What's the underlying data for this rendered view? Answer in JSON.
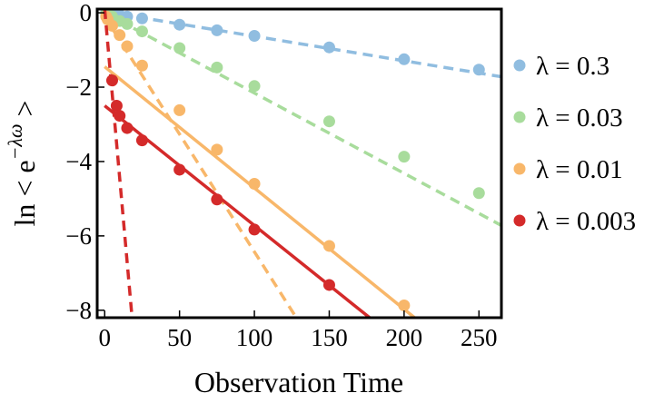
{
  "chart_data": {
    "type": "scatter",
    "title": "",
    "xlabel": "Observation Time",
    "ylabel": "ln < e",
    "ylabel_superscript": "−λω",
    "ylabel_suffix": " >",
    "xlim": [
      -5,
      265
    ],
    "ylim": [
      -8.2,
      0.1
    ],
    "x_ticks": [
      0,
      50,
      100,
      150,
      200,
      250
    ],
    "x_tick_labels": [
      "0",
      "50",
      "100",
      "150",
      "200",
      "250"
    ],
    "y_ticks": [
      0,
      -2,
      -4,
      -6,
      -8
    ],
    "y_tick_labels": [
      "0",
      "−2",
      "−4",
      "−6",
      "−8"
    ],
    "grid": false,
    "legend_position": "right",
    "series": [
      {
        "name": "λ = 0.3",
        "color": "#90bde0",
        "x": [
          1,
          2,
          5,
          10,
          15,
          25,
          50,
          75,
          100,
          150,
          200,
          250
        ],
        "y": [
          0,
          -0.01,
          -0.03,
          -0.06,
          -0.1,
          -0.15,
          -0.32,
          -0.47,
          -0.62,
          -0.93,
          -1.25,
          -1.53
        ],
        "fit_lines": [
          {
            "style": "dashed",
            "x": [
              0,
              265
            ],
            "y": [
              0.03,
              -1.72
            ]
          }
        ]
      },
      {
        "name": "λ = 0.03",
        "color": "#a8dc9c",
        "x": [
          1,
          2,
          5,
          10,
          15,
          25,
          50,
          75,
          100,
          150,
          200,
          250
        ],
        "y": [
          -0.03,
          -0.05,
          -0.1,
          -0.22,
          -0.3,
          -0.5,
          -0.95,
          -1.47,
          -1.97,
          -2.92,
          -3.87,
          -4.85
        ],
        "fit_lines": [
          {
            "style": "dashed",
            "x": [
              0,
              265
            ],
            "y": [
              0,
              -5.72
            ]
          }
        ]
      },
      {
        "name": "λ = 0.01",
        "color": "#f8b76a",
        "x": [
          1,
          2,
          5,
          10,
          15,
          25,
          50,
          75,
          100,
          150,
          200
        ],
        "y": [
          -0.1,
          -0.18,
          -0.35,
          -0.6,
          -0.9,
          -1.42,
          -2.62,
          -3.68,
          -4.6,
          -6.27,
          -7.87
        ],
        "fit_lines": [
          {
            "style": "dashed",
            "x": [
              0,
              128
            ],
            "y": [
              -0.1,
              -8.2
            ]
          },
          {
            "style": "solid",
            "x": [
              0,
              207
            ],
            "y": [
              -1.45,
              -8.2
            ]
          }
        ]
      },
      {
        "name": "λ = 0.003",
        "color": "#d42a2a",
        "x": [
          5,
          8,
          10,
          15,
          25,
          50,
          75,
          100,
          150
        ],
        "y": [
          -1.82,
          -2.5,
          -2.77,
          -3.1,
          -3.43,
          -4.22,
          -5.02,
          -5.83,
          -7.32
        ],
        "fit_lines": [
          {
            "style": "dashed",
            "x": [
              0,
              18.3
            ],
            "y": [
              0.1,
              -8.2
            ]
          },
          {
            "style": "solid",
            "x": [
              0,
              177
            ],
            "y": [
              -2.5,
              -8.2
            ]
          }
        ]
      }
    ]
  }
}
